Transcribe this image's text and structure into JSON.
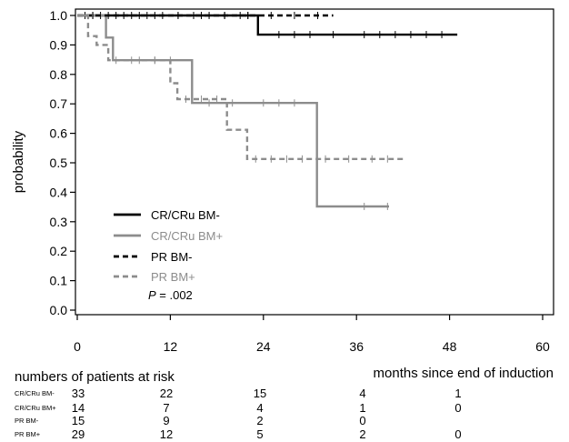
{
  "chart_data": {
    "type": "line",
    "title": "",
    "ylabel": "probability",
    "xlabel": "months since end of induction",
    "xlim": [
      0,
      60
    ],
    "ylim": [
      0,
      1
    ],
    "x_ticks": [
      "0",
      "12",
      "24",
      "36",
      "48",
      "60"
    ],
    "y_ticks": [
      "0.0",
      "0.1",
      "0.2",
      "0.3",
      "0.4",
      "0.5",
      "0.6",
      "0.7",
      "0.8",
      "0.9",
      "1.0"
    ],
    "grid": false,
    "legend_placement": "bottom-left",
    "annotation": {
      "prefix": "P",
      "text": " = .002"
    },
    "series": [
      {
        "name": "CR/CRu BM-",
        "color": "#000000",
        "dash": "solid",
        "x": [
          0,
          23.3,
          23.3,
          49
        ],
        "y": [
          1.0,
          1.0,
          0.935,
          0.935
        ],
        "censor_x": [
          1,
          2,
          3,
          5,
          7,
          9,
          11,
          13,
          15,
          17,
          19,
          21,
          22,
          26,
          28,
          30,
          33,
          37,
          39,
          41,
          43,
          45,
          47
        ]
      },
      {
        "name": "CR/CRu BM+",
        "color": "#8c8c8c",
        "dash": "solid",
        "x": [
          0,
          3.7,
          3.7,
          4.6,
          4.6,
          14.8,
          14.8,
          30.9,
          30.9,
          40.2
        ],
        "y": [
          1.0,
          1.0,
          0.925,
          0.925,
          0.848,
          0.848,
          0.703,
          0.703,
          0.352,
          0.352
        ],
        "censor_x": [
          7,
          10,
          12,
          17,
          20,
          24,
          26,
          28,
          37,
          40
        ]
      },
      {
        "name": "PR BM-",
        "color": "#000000",
        "dash": "dashed",
        "x": [
          0,
          33
        ],
        "y": [
          1.0,
          1.0
        ],
        "censor_x": [
          2,
          4,
          6,
          8,
          10,
          13,
          16,
          19,
          22,
          25,
          28,
          31
        ]
      },
      {
        "name": "PR BM+",
        "color": "#8c8c8c",
        "dash": "dashed",
        "x": [
          0,
          1.4,
          1.4,
          2.5,
          2.5,
          4.0,
          4.0,
          12.0,
          12.0,
          12.9,
          12.9,
          19.3,
          19.3,
          21.9,
          21.9,
          42.4
        ],
        "y": [
          1.0,
          1.0,
          0.93,
          0.93,
          0.9,
          0.9,
          0.848,
          0.848,
          0.77,
          0.77,
          0.716,
          0.716,
          0.612,
          0.612,
          0.513,
          0.513
        ],
        "censor_x": [
          5,
          8,
          10,
          14,
          16,
          18,
          23,
          25,
          27,
          29,
          32,
          35,
          38,
          40
        ]
      }
    ],
    "risk_table": {
      "title": "numbers of patients at risk",
      "rows": [
        {
          "label": "CR/CRu BM-",
          "values": [
            "33",
            "22",
            "15",
            "4",
            "1",
            ""
          ]
        },
        {
          "label": "CR/CRu BM+",
          "values": [
            "14",
            "7",
            "4",
            "1",
            "0",
            ""
          ]
        },
        {
          "label": "PR BM-",
          "values": [
            "15",
            "9",
            "2",
            "0",
            "",
            ""
          ]
        },
        {
          "label": "PR BM+",
          "values": [
            "29",
            "12",
            "5",
            "2",
            "0",
            ""
          ]
        }
      ]
    }
  }
}
